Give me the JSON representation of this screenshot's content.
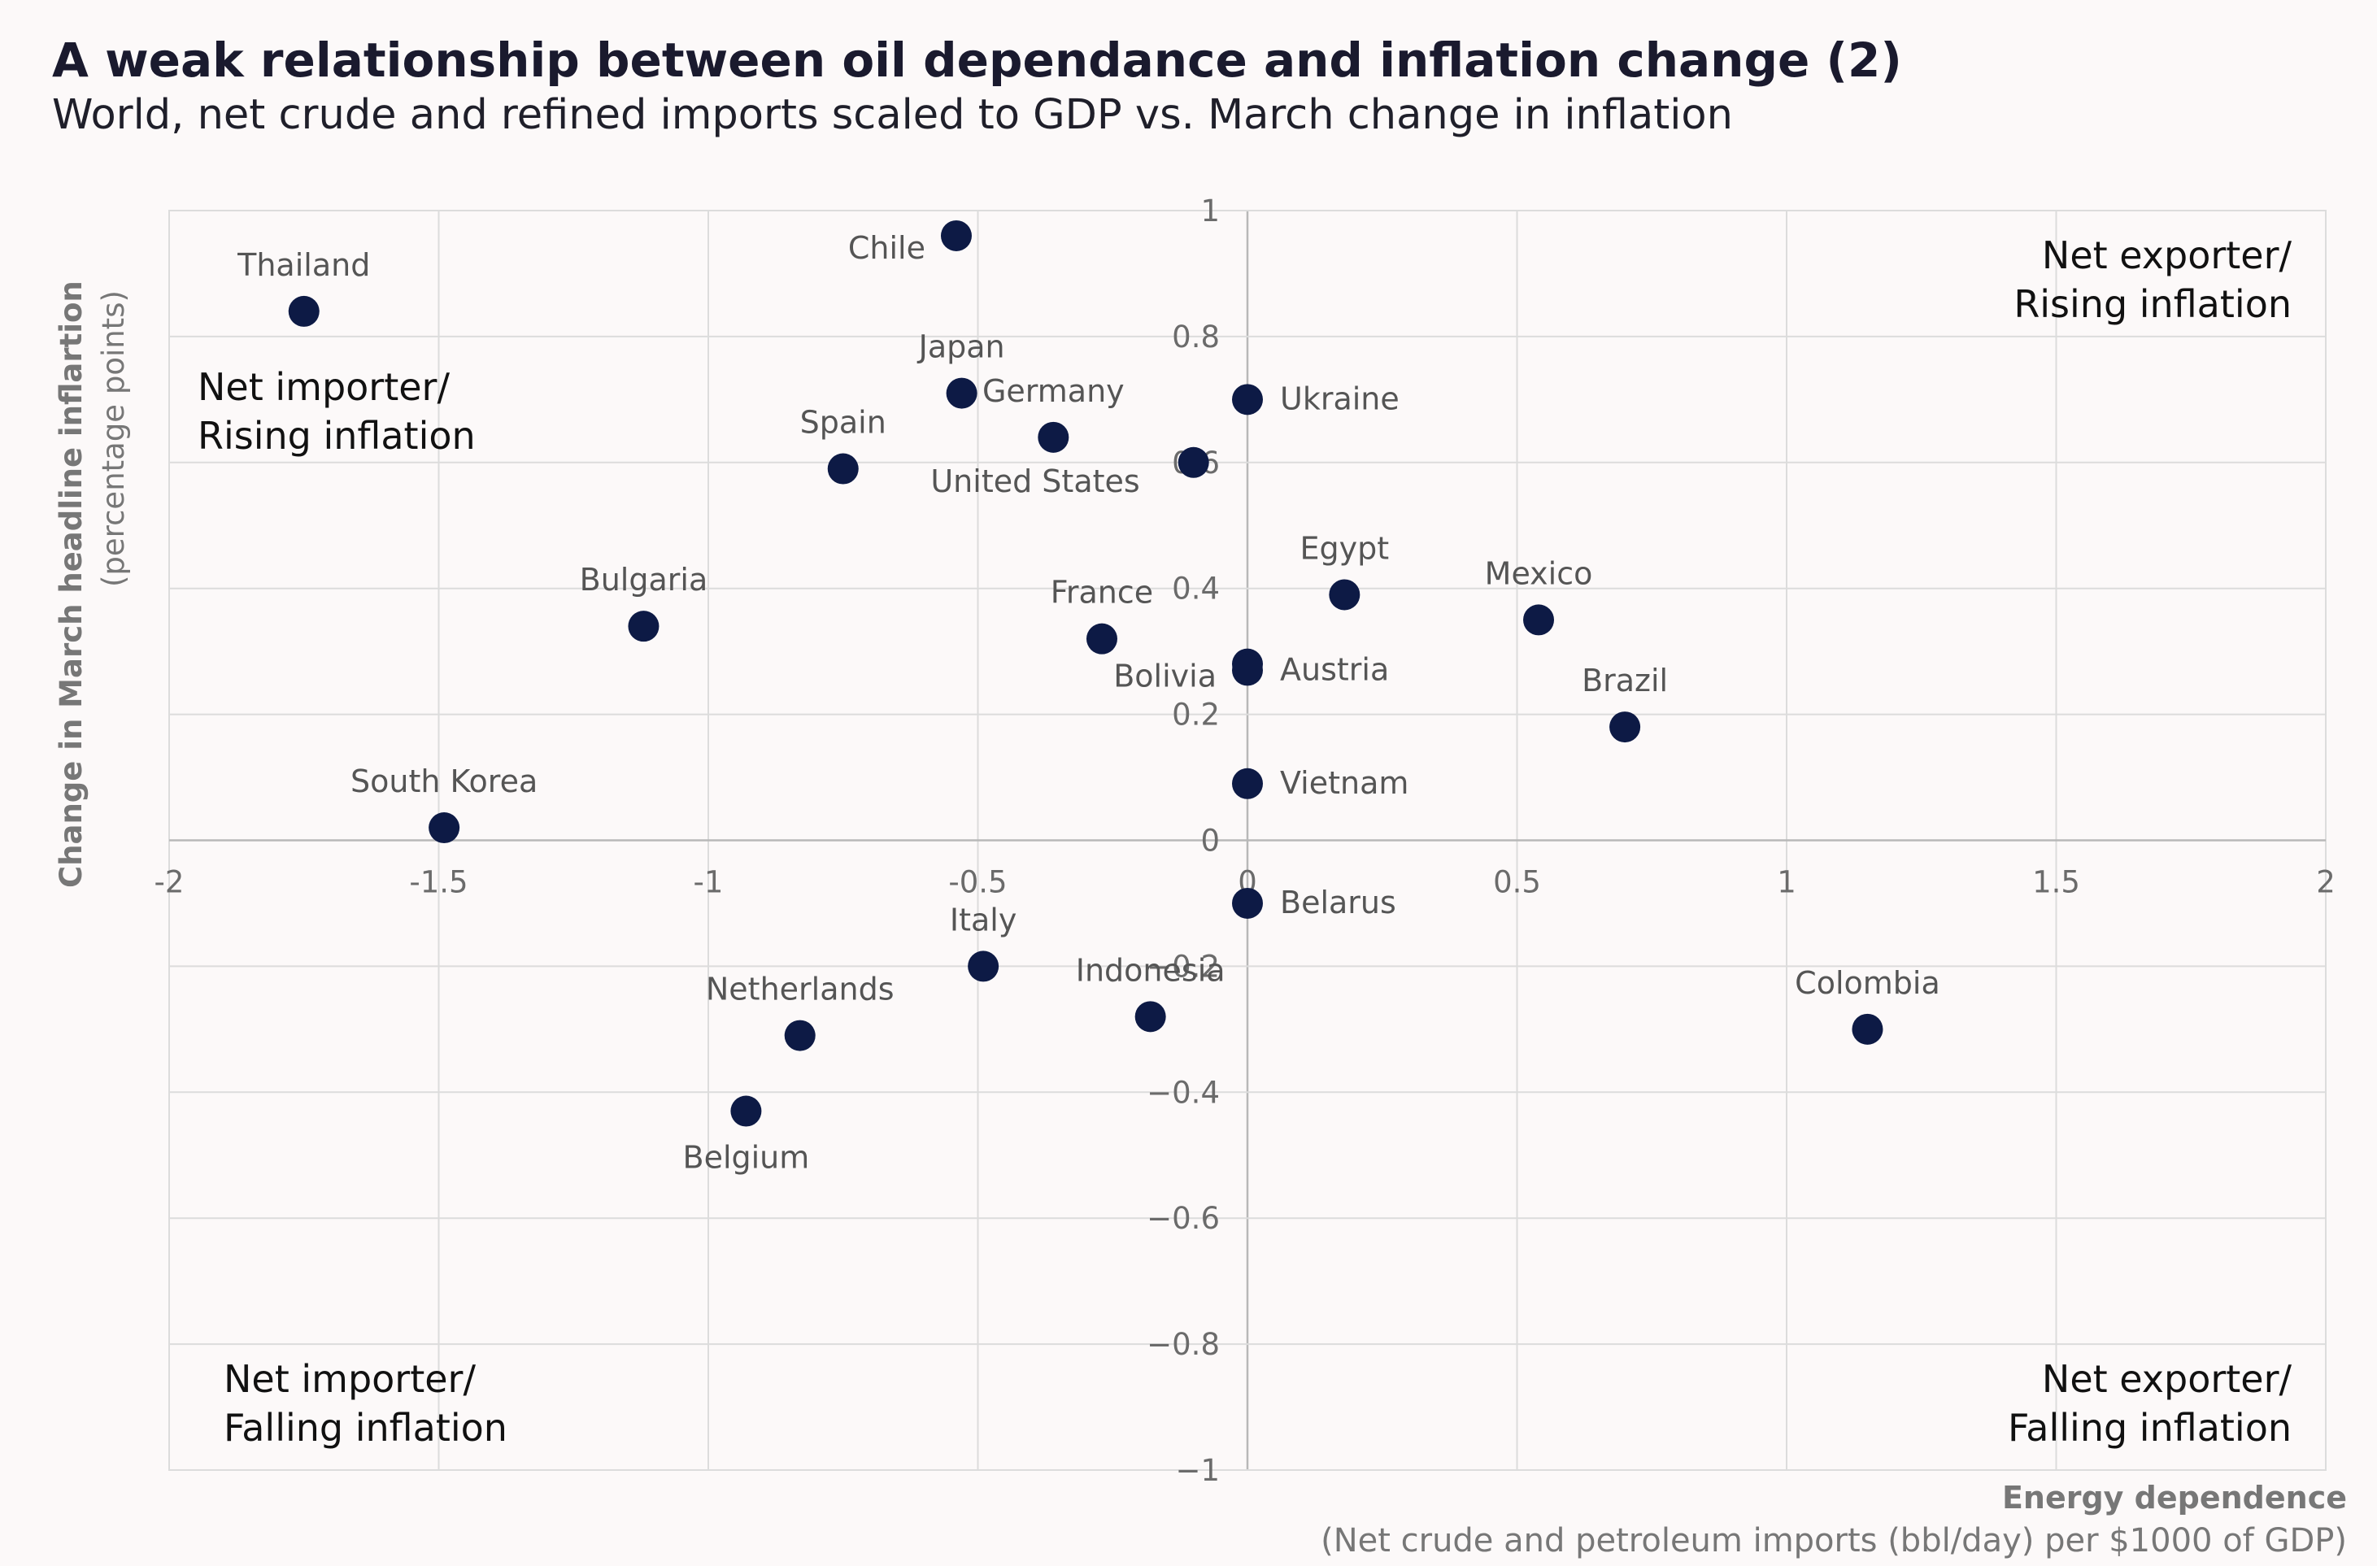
{
  "title": "A weak relationship between oil dependance and inflation change (2)",
  "subtitle": "World, net crude and refined imports scaled to GDP vs. March change in inflation",
  "chart_data": {
    "type": "scatter",
    "xlim": [
      -2,
      2
    ],
    "ylim": [
      -1,
      1
    ],
    "x_ticks": [
      -2,
      -1.5,
      -1,
      -0.5,
      0,
      0.5,
      1,
      1.5,
      2
    ],
    "x_tick_labels": [
      "-2",
      "-1.5",
      "-1",
      "-0.5",
      "0",
      "0.5",
      "1",
      "1.5",
      "2"
    ],
    "y_ticks": [
      1,
      0.8,
      0.6,
      0.4,
      0.2,
      0,
      -0.2,
      -0.4,
      -0.6,
      -0.8,
      -1
    ],
    "y_tick_labels": [
      "1",
      "0.8",
      "0.6",
      "0.4",
      "0.2",
      "0",
      "−0.2",
      "−0.4",
      "−0.6",
      "−0.8",
      "−1"
    ],
    "grid": true,
    "ylabel": "Change in March headline inflartion",
    "ylabel_sub": "(percentage points)",
    "xlabel": "Energy dependence",
    "xlabel_sub": "(Net crude and petroleum imports (bbl/day) per $1000 of GDP)",
    "quadrant_labels": {
      "top_left": [
        "Net importer/",
        "Rising inflation"
      ],
      "top_right": [
        "Net exporter/",
        "Rising inflation"
      ],
      "bottom_left": [
        "Net importer/",
        "Falling inflation"
      ],
      "bottom_right": [
        "Net exporter/",
        "Falling inflation"
      ]
    },
    "points": [
      {
        "name": "Thailand",
        "x": -1.75,
        "y": 0.84,
        "label_pos": "above"
      },
      {
        "name": "Chile",
        "x": -0.54,
        "y": 0.96,
        "label_pos": "left"
      },
      {
        "name": "Japan",
        "x": -0.53,
        "y": 0.71,
        "label_pos": "above"
      },
      {
        "name": "Germany",
        "x": -0.36,
        "y": 0.64,
        "label_pos": "above"
      },
      {
        "name": "Spain",
        "x": -0.75,
        "y": 0.59,
        "label_pos": "above"
      },
      {
        "name": "United States",
        "x": -0.1,
        "y": 0.6,
        "label_pos": "below-left"
      },
      {
        "name": "Ukraine",
        "x": 0.0,
        "y": 0.7,
        "label_pos": "right"
      },
      {
        "name": "Egypt",
        "x": 0.18,
        "y": 0.39,
        "label_pos": "above"
      },
      {
        "name": "Mexico",
        "x": 0.54,
        "y": 0.35,
        "label_pos": "above"
      },
      {
        "name": "Bulgaria",
        "x": -1.12,
        "y": 0.34,
        "label_pos": "above"
      },
      {
        "name": "France",
        "x": -0.27,
        "y": 0.32,
        "label_pos": "above"
      },
      {
        "name": "Bolivia",
        "x": 0.0,
        "y": 0.28,
        "label_pos": "left"
      },
      {
        "name": "Austria",
        "x": 0.0,
        "y": 0.27,
        "label_pos": "right"
      },
      {
        "name": "Brazil",
        "x": 0.7,
        "y": 0.18,
        "label_pos": "above"
      },
      {
        "name": "Vietnam",
        "x": 0.0,
        "y": 0.09,
        "label_pos": "right"
      },
      {
        "name": "South Korea",
        "x": -1.49,
        "y": 0.02,
        "label_pos": "above"
      },
      {
        "name": "Belarus",
        "x": 0.0,
        "y": -0.1,
        "label_pos": "right"
      },
      {
        "name": "Italy",
        "x": -0.49,
        "y": -0.2,
        "label_pos": "above"
      },
      {
        "name": "Indonesia",
        "x": -0.18,
        "y": -0.28,
        "label_pos": "above"
      },
      {
        "name": "Netherlands",
        "x": -0.83,
        "y": -0.31,
        "label_pos": "above"
      },
      {
        "name": "Colombia",
        "x": 1.15,
        "y": -0.3,
        "label_pos": "above"
      },
      {
        "name": "Belgium",
        "x": -0.93,
        "y": -0.43,
        "label_pos": "below"
      }
    ],
    "colors": {
      "dot": "#0d1a45",
      "background": "#fcf9f9",
      "grid": "#dcdcdc"
    }
  }
}
